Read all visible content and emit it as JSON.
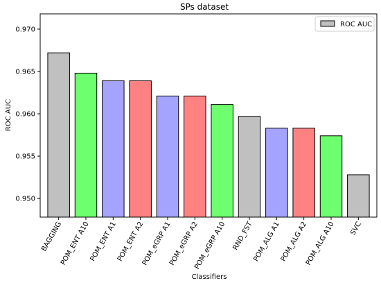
{
  "chart_data": {
    "type": "bar",
    "title": "SPs dataset",
    "xlabel": "Classifiers",
    "ylabel": "ROC AUC",
    "ylim": [
      0.9478,
      0.9718
    ],
    "yticks": [
      "0.950",
      "0.955",
      "0.960",
      "0.965",
      "0.970"
    ],
    "ytick_values": [
      0.95,
      0.955,
      0.96,
      0.965,
      0.97
    ],
    "categories": [
      "BAGGING",
      "POM_ENT A10",
      "POM_ENT A1",
      "POM_ENT A2",
      "POM_eGRP A1",
      "POM_eGRP A2",
      "POM_eGRP A10",
      "RND_FST",
      "POM_ALG A1",
      "POM_ALG A2",
      "POM_ALG A10",
      "SVC"
    ],
    "series": [
      {
        "name": "ROC AUC",
        "values": [
          0.9672,
          0.9648,
          0.9639,
          0.9639,
          0.9621,
          0.9621,
          0.9611,
          0.9597,
          0.9583,
          0.9583,
          0.9574,
          0.9528
        ],
        "colors": [
          "#c0c0c0",
          "#6eff6e",
          "#a4a4ff",
          "#ff8282",
          "#a4a4ff",
          "#ff8282",
          "#6eff6e",
          "#c0c0c0",
          "#a4a4ff",
          "#ff8282",
          "#6eff6e",
          "#c0c0c0"
        ]
      }
    ],
    "legend": {
      "label": "ROC AUC",
      "color": "#c0c0c0",
      "placement": "top-right"
    },
    "grid": false
  }
}
